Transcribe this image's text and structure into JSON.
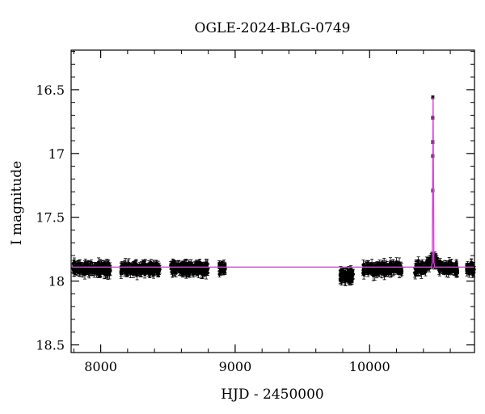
{
  "chart_data": {
    "type": "scatter",
    "title": "OGLE-2024-BLG-0749",
    "xlabel": "HJD - 2450000",
    "ylabel": "I magnitude",
    "xlim": [
      7780,
      10780
    ],
    "ylim": [
      18.56,
      16.19
    ],
    "y_inverted": true,
    "x_ticks": [
      8000,
      9000,
      10000
    ],
    "y_ticks": [
      16.5,
      17,
      17.5,
      18,
      18.5
    ],
    "x_tick_labels": [
      "8000",
      "9000",
      "10000"
    ],
    "y_tick_labels": [
      "16.5",
      "17",
      "17.5",
      "18",
      "18.5"
    ],
    "grid": false,
    "baseline_magnitude": 17.89,
    "point_color": "#000000",
    "model_color": "#e040e0",
    "observing_seasons": [
      {
        "x_start": 7795,
        "x_end": 8075,
        "n_points": 180
      },
      {
        "x_start": 8150,
        "x_end": 8440,
        "n_points": 200
      },
      {
        "x_start": 8520,
        "x_end": 8800,
        "n_points": 220
      },
      {
        "x_start": 8880,
        "x_end": 8930,
        "n_points": 30
      },
      {
        "x_start": 9780,
        "x_end": 9880,
        "n_points": 80
      },
      {
        "x_start": 9950,
        "x_end": 10240,
        "n_points": 180
      },
      {
        "x_start": 10330,
        "x_end": 10660,
        "n_points": 200
      },
      {
        "x_start": 10720,
        "x_end": 10780,
        "n_points": 40
      }
    ],
    "peak_points": [
      {
        "x": 10470,
        "y": 16.56
      },
      {
        "x": 10470,
        "y": 16.72
      },
      {
        "x": 10470,
        "y": 16.91
      },
      {
        "x": 10470,
        "y": 17.02
      },
      {
        "x": 10470,
        "y": 17.29
      }
    ],
    "model_peak": {
      "x": 10472,
      "y": 16.56
    }
  }
}
